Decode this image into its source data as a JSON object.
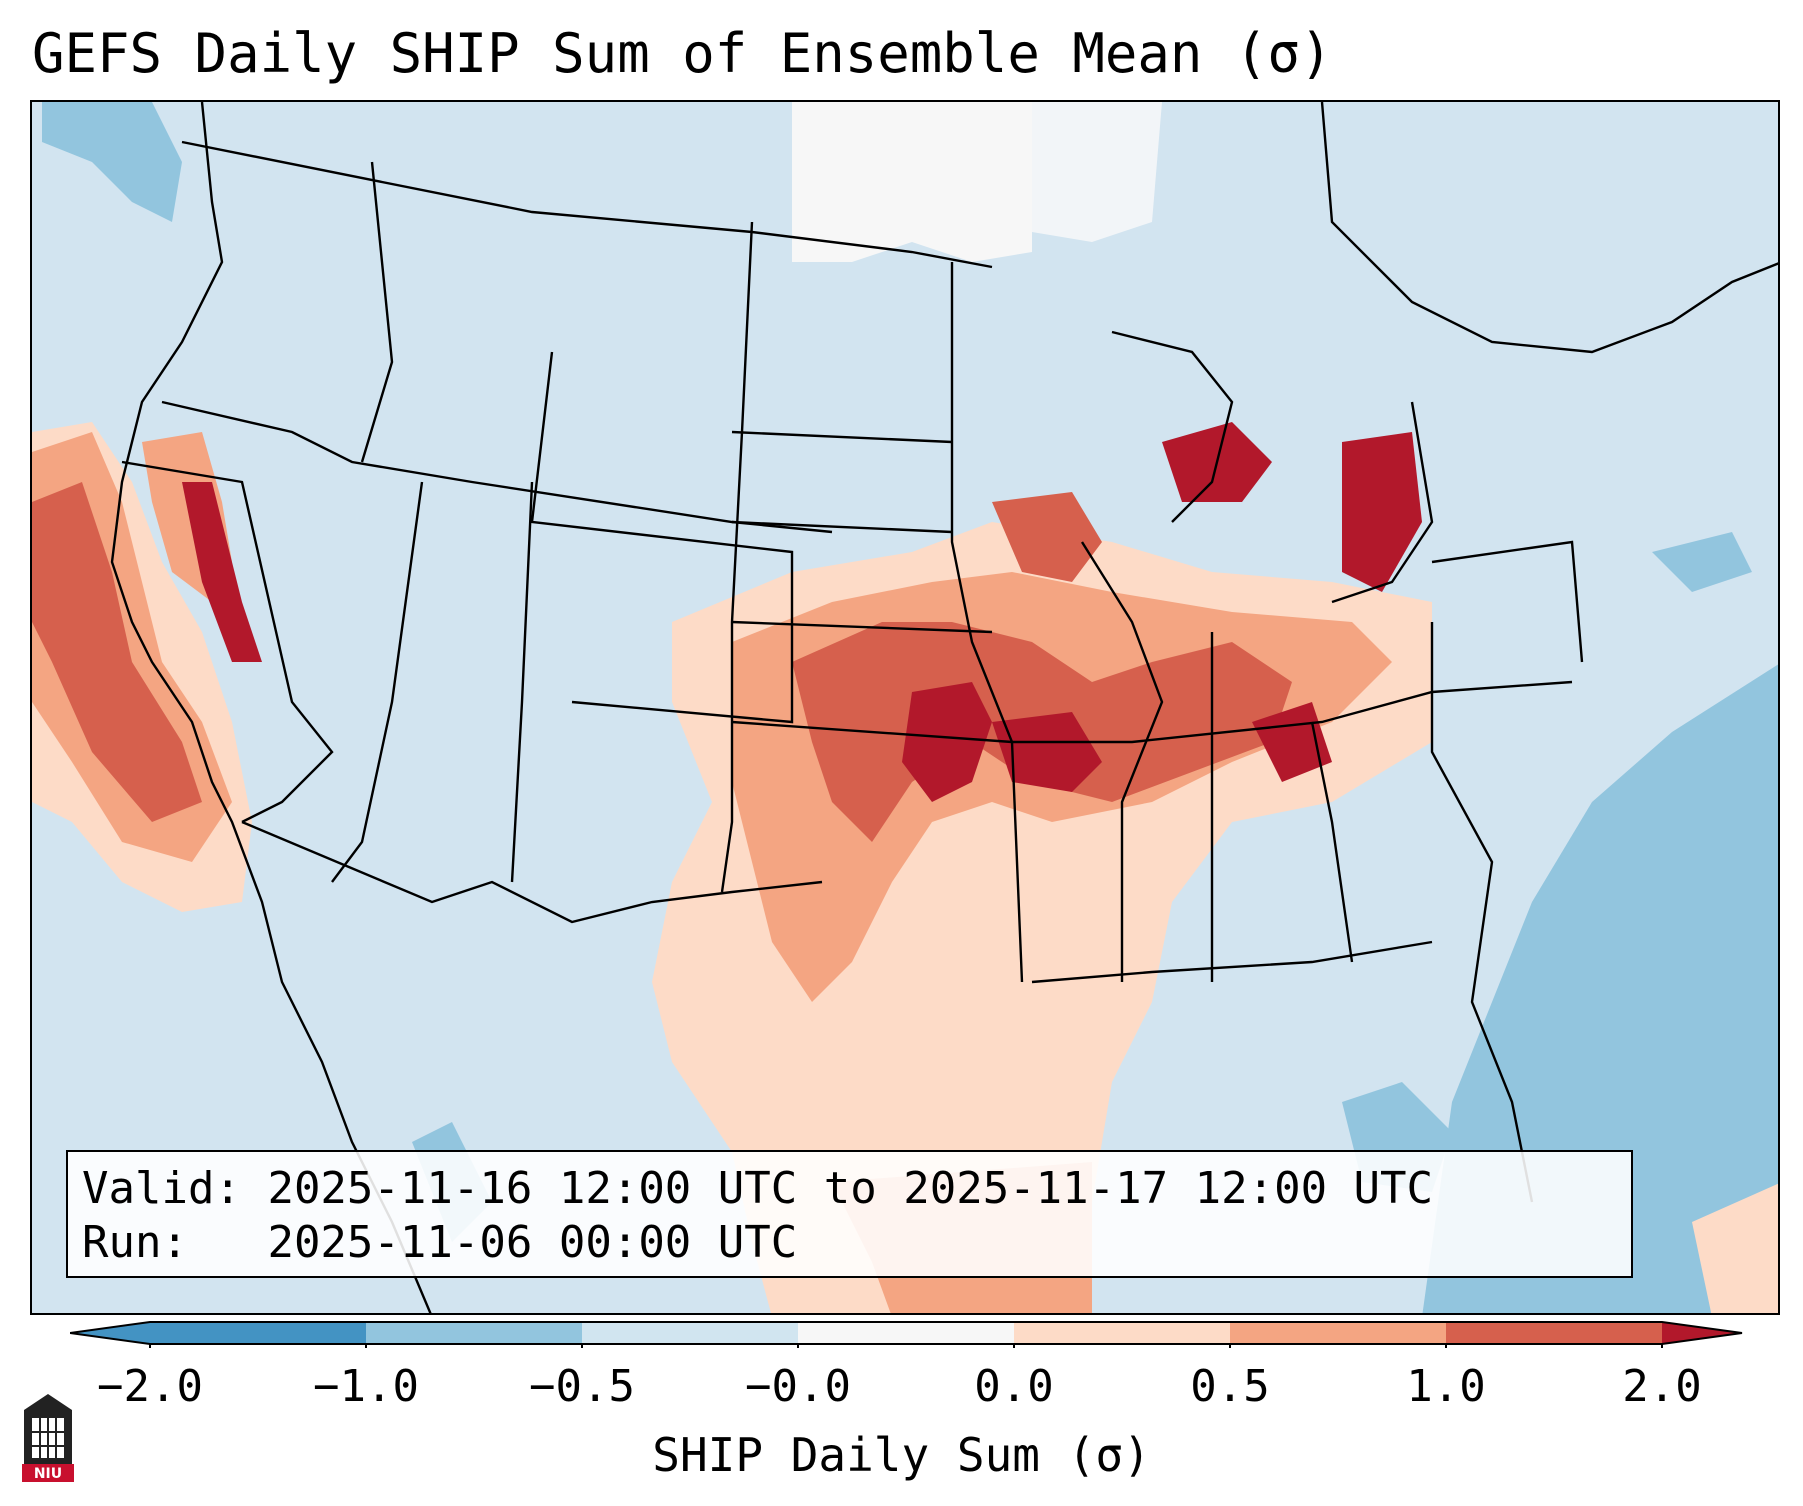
{
  "title": "GEFS Daily SHIP Sum of Ensemble Mean (σ)",
  "info": {
    "valid_label": "Valid:",
    "valid_value": "2025-11-16 12:00 UTC to 2025-11-17 12:00 UTC",
    "run_label": "Run:",
    "run_value": "2025-11-06 00:00 UTC"
  },
  "colorbar": {
    "label": "SHIP Daily Sum (σ)",
    "ticks": [
      "−2.0",
      "−1.0",
      "−0.5",
      "−0.0",
      "0.0",
      "0.5",
      "1.0",
      "2.0"
    ],
    "colors": [
      "#4393c3",
      "#92c5de",
      "#d1e5f0",
      "#f7f7f7",
      "#fddbc7",
      "#f4a582",
      "#d6604d",
      "#b2182b"
    ]
  },
  "logo_text": "NIU",
  "map_icons": [
    "state-boundaries",
    "coastlines",
    "great-lakes"
  ]
}
